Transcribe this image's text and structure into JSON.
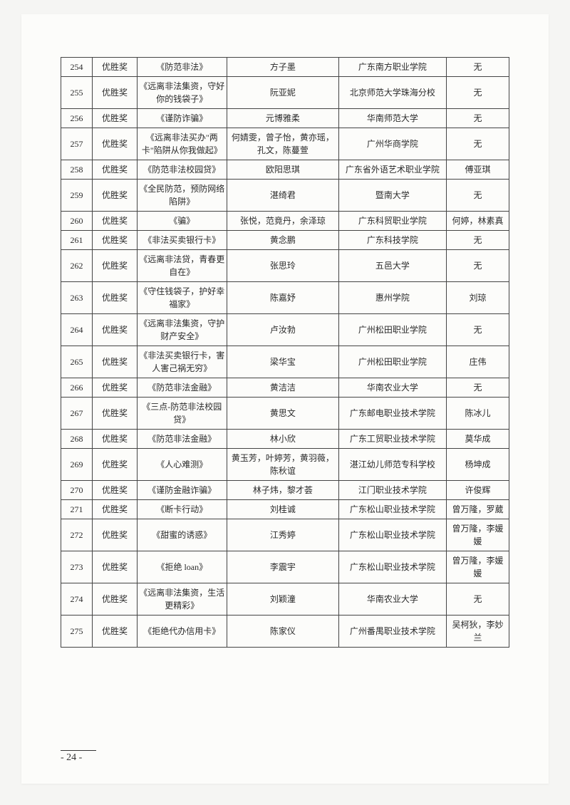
{
  "page_number": "- 24 -",
  "table": {
    "col_widths_pct": [
      7,
      10,
      20,
      25,
      24,
      14
    ],
    "border_color": "#444444",
    "font_size_pt": 9,
    "rows": [
      {
        "num": "254",
        "award": "优胜奖",
        "title": "《防范非法》",
        "names": "方子墨",
        "school": "广东南方职业学院",
        "adv": "无"
      },
      {
        "num": "255",
        "award": "优胜奖",
        "title": "《远离非法集资，守好你的钱袋子》",
        "names": "阮亚妮",
        "school": "北京师范大学珠海分校",
        "adv": "无"
      },
      {
        "num": "256",
        "award": "优胜奖",
        "title": "《谨防诈骗》",
        "names": "元博雅柔",
        "school": "华南师范大学",
        "adv": "无"
      },
      {
        "num": "257",
        "award": "优胜奖",
        "title": "《远离非法买办\"两卡\"陷阱从你我做起》",
        "names": "何婧雯，曾子怡，黄亦瑶，孔文，陈蔓萱",
        "school": "广州华商学院",
        "adv": "无"
      },
      {
        "num": "258",
        "award": "优胜奖",
        "title": "《防范非法校园贷》",
        "names": "欧阳思琪",
        "school": "广东省外语艺术职业学院",
        "adv": "傅亚琪"
      },
      {
        "num": "259",
        "award": "优胜奖",
        "title": "《全民防范，预防网络陷阱》",
        "names": "湛绮君",
        "school": "暨南大学",
        "adv": "无"
      },
      {
        "num": "260",
        "award": "优胜奖",
        "title": "《骗》",
        "names": "张悦，范竟丹，余泽琼",
        "school": "广东科贸职业学院",
        "adv": "何婷，林素真"
      },
      {
        "num": "261",
        "award": "优胜奖",
        "title": "《非法买卖银行卡》",
        "names": "黄念鹏",
        "school": "广东科技学院",
        "adv": "无"
      },
      {
        "num": "262",
        "award": "优胜奖",
        "title": "《远离非法贷，青春更自在》",
        "names": "张思玲",
        "school": "五邑大学",
        "adv": "无"
      },
      {
        "num": "263",
        "award": "优胜奖",
        "title": "《守住钱袋子，护好幸福家》",
        "names": "陈嘉妤",
        "school": "惠州学院",
        "adv": "刘琼"
      },
      {
        "num": "264",
        "award": "优胜奖",
        "title": "《远离非法集资，守护财产安全》",
        "names": "卢汝勃",
        "school": "广州松田职业学院",
        "adv": "无"
      },
      {
        "num": "265",
        "award": "优胜奖",
        "title": "《非法买卖银行卡，害人害己祸无穷》",
        "names": "梁华宝",
        "school": "广州松田职业学院",
        "adv": "庄伟"
      },
      {
        "num": "266",
        "award": "优胜奖",
        "title": "《防范非法金融》",
        "names": "黄洁洁",
        "school": "华南农业大学",
        "adv": "无"
      },
      {
        "num": "267",
        "award": "优胜奖",
        "title": "《三点-防范非法校园贷》",
        "names": "黄思文",
        "school": "广东邮电职业技术学院",
        "adv": "陈冰儿"
      },
      {
        "num": "268",
        "award": "优胜奖",
        "title": "《防范非法金融》",
        "names": "林小欣",
        "school": "广东工贸职业技术学院",
        "adv": "莫华成"
      },
      {
        "num": "269",
        "award": "优胜奖",
        "title": "《人心难测》",
        "names": "黄玉芳，叶婷芳，黄羽薇，陈秋谊",
        "school": "湛江幼儿师范专科学校",
        "adv": "杨坤成"
      },
      {
        "num": "270",
        "award": "优胜奖",
        "title": "《谨防金融诈骗》",
        "names": "林子炜，黎才荟",
        "school": "江门职业技术学院",
        "adv": "许俊辉"
      },
      {
        "num": "271",
        "award": "优胜奖",
        "title": "《断卡行动》",
        "names": "刘桂诚",
        "school": "广东松山职业技术学院",
        "adv": "曾万隆，罗葳"
      },
      {
        "num": "272",
        "award": "优胜奖",
        "title": "《甜蜜的诱惑》",
        "names": "江秀婷",
        "school": "广东松山职业技术学院",
        "adv": "曾万隆，李媛媛"
      },
      {
        "num": "273",
        "award": "优胜奖",
        "title": "《拒绝 loan》",
        "names": "李震宇",
        "school": "广东松山职业技术学院",
        "adv": "曾万隆，李媛媛"
      },
      {
        "num": "274",
        "award": "优胜奖",
        "title": "《远离非法集资，生活更精彩》",
        "names": "刘颖潼",
        "school": "华南农业大学",
        "adv": "无"
      },
      {
        "num": "275",
        "award": "优胜奖",
        "title": "《拒绝代办信用卡》",
        "names": "陈家仪",
        "school": "广州番禺职业技术学院",
        "adv": "吴柯狄，李妙兰"
      }
    ]
  }
}
